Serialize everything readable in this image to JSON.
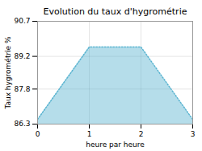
{
  "chart_data": {
    "type": "area",
    "title": "Evolution du taux d'hygrométrie",
    "xlabel": "heure par heure",
    "ylabel": "Taux hygrométrie %",
    "x": [
      0,
      1,
      2,
      3
    ],
    "values": [
      86.5,
      89.6,
      89.6,
      86.5
    ],
    "color": "#5ab4d0",
    "line_style": "dotted",
    "xlim": [
      0,
      3
    ],
    "ylim": [
      86.3,
      90.7
    ],
    "xticks": [
      0,
      1,
      2,
      3
    ],
    "yticks": [
      86.3,
      87.8,
      89.2,
      90.7
    ],
    "grid": true
  }
}
